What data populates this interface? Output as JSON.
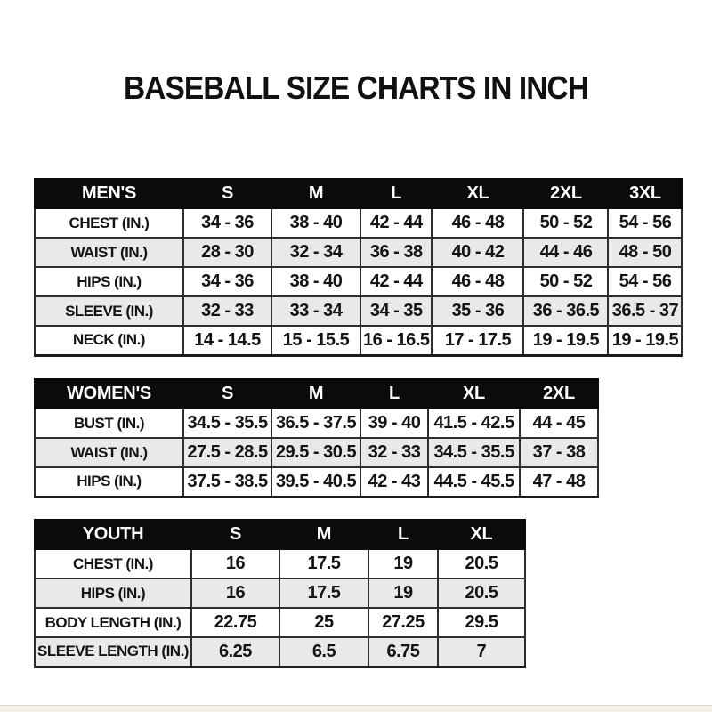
{
  "page": {
    "title": "BASEBALL SIZE CHARTS IN INCH"
  },
  "colors": {
    "header_bg": "#0b0b0b",
    "header_text": "#ffffff",
    "body_text": "#141414",
    "alt_row_bg": "#e9e9e9",
    "border": "#2e2e2e",
    "footer_strip": "#f2efe9"
  },
  "tables": [
    {
      "id": "mens",
      "header": [
        "MEN'S",
        "S",
        "M",
        "L",
        "XL",
        "2XL",
        "3XL"
      ],
      "rows": [
        {
          "label": "CHEST (IN.)",
          "values": [
            "34 - 36",
            "38 - 40",
            "42 - 44",
            "46 - 48",
            "50 - 52",
            "54 - 56"
          ]
        },
        {
          "label": "WAIST (IN.)",
          "values": [
            "28 - 30",
            "32 - 34",
            "36 - 38",
            "40 - 42",
            "44 - 46",
            "48 - 50"
          ]
        },
        {
          "label": "HIPS (IN.)",
          "values": [
            "34 - 36",
            "38 - 40",
            "42 - 44",
            "46 - 48",
            "50 - 52",
            "54 - 56"
          ]
        },
        {
          "label": "SLEEVE (IN.)",
          "values": [
            "32 - 33",
            "33 - 34",
            "34 - 35",
            "35 - 36",
            "36 - 36.5",
            "36.5 - 37"
          ]
        },
        {
          "label": "NECK (IN.)",
          "values": [
            "14 - 14.5",
            "15 - 15.5",
            "16 - 16.5",
            "17 - 17.5",
            "19 - 19.5",
            "19 - 19.5"
          ]
        }
      ]
    },
    {
      "id": "womens",
      "header": [
        "WOMEN'S",
        "S",
        "M",
        "L",
        "XL",
        "2XL"
      ],
      "rows": [
        {
          "label": "BUST (IN.)",
          "values": [
            "34.5 - 35.5",
            "36.5 - 37.5",
            "39 - 40",
            "41.5 - 42.5",
            "44 - 45"
          ]
        },
        {
          "label": "WAIST (IN.)",
          "values": [
            "27.5 - 28.5",
            "29.5 - 30.5",
            "32 - 33",
            "34.5 - 35.5",
            "37 - 38"
          ]
        },
        {
          "label": "HIPS (IN.)",
          "values": [
            "37.5 - 38.5",
            "39.5 - 40.5",
            "42 - 43",
            "44.5 - 45.5",
            "47 - 48"
          ]
        }
      ]
    },
    {
      "id": "youth",
      "header": [
        "YOUTH",
        "S",
        "M",
        "L",
        "XL"
      ],
      "rows": [
        {
          "label": "CHEST (IN.)",
          "values": [
            "16",
            "17.5",
            "19",
            "20.5"
          ]
        },
        {
          "label": "HIPS (IN.)",
          "values": [
            "16",
            "17.5",
            "19",
            "20.5"
          ]
        },
        {
          "label": "BODY LENGTH (IN.)",
          "values": [
            "22.75",
            "25",
            "27.25",
            "29.5"
          ]
        },
        {
          "label": "SLEEVE LENGTH (IN.)",
          "values": [
            "6.25",
            "6.5",
            "6.75",
            "7"
          ]
        }
      ]
    }
  ]
}
